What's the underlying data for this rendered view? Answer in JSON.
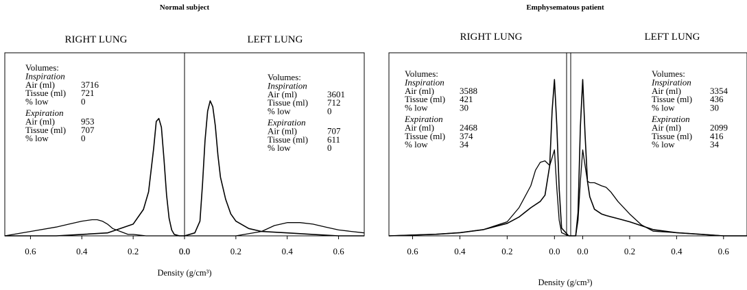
{
  "chart_data": [
    {
      "type": "line",
      "title": "Normal subject",
      "xlabel": "Density (g/cm³)",
      "ylabel": "",
      "x_note": "Each half is a mirrored density axis: values increase away from the central divider.",
      "panels": [
        {
          "label": "RIGHT LUNG",
          "xlim": [
            0.7,
            0.0
          ],
          "xticks": [
            "0.6",
            "0.4",
            "0.2",
            "0.0"
          ],
          "volumes": {
            "heading": "Volumes:",
            "inspiration": {
              "label": "Inspiration",
              "rows": [
                {
                  "name": "Air (ml)",
                  "value": "3716"
                },
                {
                  "name": "Tissue (ml)",
                  "value": "721"
                },
                {
                  "name": "% low",
                  "value": "0"
                }
              ]
            },
            "expiration": {
              "label": "Expiration",
              "rows": [
                {
                  "name": "Air (ml)",
                  "value": "953"
                },
                {
                  "name": "Tissue (ml)",
                  "value": "707"
                },
                {
                  "name": "% low",
                  "value": "0"
                }
              ]
            }
          },
          "series": [
            {
              "phase": "inspiration",
              "x": [
                0.7,
                0.5,
                0.4,
                0.3,
                0.2,
                0.16,
                0.14,
                0.12,
                0.11,
                0.1,
                0.09,
                0.08,
                0.07,
                0.06,
                0.05,
                0.04,
                0.02,
                0.0
              ],
              "y": [
                0.0,
                0.0,
                0.01,
                0.02,
                0.08,
                0.18,
                0.3,
                0.6,
                0.78,
                0.8,
                0.74,
                0.52,
                0.28,
                0.12,
                0.04,
                0.01,
                0.0,
                0.0
              ]
            },
            {
              "phase": "expiration",
              "x": [
                0.7,
                0.6,
                0.5,
                0.45,
                0.4,
                0.36,
                0.34,
                0.32,
                0.3,
                0.28,
                0.25,
                0.22,
                0.2,
                0.15,
                0.1,
                0.05,
                0.0
              ],
              "y": [
                0.0,
                0.03,
                0.06,
                0.08,
                0.1,
                0.11,
                0.11,
                0.1,
                0.08,
                0.05,
                0.03,
                0.01,
                0.01,
                0.0,
                0.0,
                0.0,
                0.0
              ]
            }
          ]
        },
        {
          "label": "LEFT LUNG",
          "xlim": [
            0.0,
            0.7
          ],
          "xticks": [
            "0.0",
            "0.2",
            "0.4",
            "0.6"
          ],
          "volumes": {
            "heading": "Volumes:",
            "inspiration": {
              "label": "Inspiration",
              "rows": [
                {
                  "name": "Air (ml)",
                  "value": "3601"
                },
                {
                  "name": "Tissue (ml)",
                  "value": "712"
                },
                {
                  "name": "% low",
                  "value": "0"
                }
              ]
            },
            "expiration": {
              "label": "Expiration",
              "rows": [
                {
                  "name": "Air (ml)",
                  "value": "707"
                },
                {
                  "name": "Tissue (ml)",
                  "value": "611"
                },
                {
                  "name": "% low",
                  "value": "0"
                }
              ]
            }
          },
          "series": [
            {
              "phase": "inspiration",
              "x": [
                0.0,
                0.04,
                0.06,
                0.07,
                0.08,
                0.09,
                0.1,
                0.11,
                0.12,
                0.13,
                0.14,
                0.16,
                0.18,
                0.2,
                0.25,
                0.3,
                0.4,
                0.5,
                0.6,
                0.7
              ],
              "y": [
                0.0,
                0.02,
                0.1,
                0.35,
                0.65,
                0.85,
                0.92,
                0.88,
                0.75,
                0.55,
                0.4,
                0.25,
                0.15,
                0.1,
                0.05,
                0.03,
                0.02,
                0.01,
                0.0,
                0.0
              ]
            },
            {
              "phase": "expiration",
              "x": [
                0.0,
                0.1,
                0.2,
                0.3,
                0.35,
                0.4,
                0.45,
                0.5,
                0.55,
                0.6,
                0.65,
                0.7
              ],
              "y": [
                0.0,
                0.0,
                0.0,
                0.03,
                0.07,
                0.09,
                0.09,
                0.08,
                0.06,
                0.04,
                0.03,
                0.02
              ]
            }
          ]
        }
      ]
    },
    {
      "type": "line",
      "title": "Emphysematous patient",
      "xlabel": "Density (g/cm³)",
      "ylabel": "",
      "panels": [
        {
          "label": "RIGHT LUNG",
          "xlim": [
            0.7,
            -0.06
          ],
          "xticks": [
            "0.6",
            "0.4",
            "0.2",
            "0.0"
          ],
          "volumes": {
            "heading": "Volumes:",
            "inspiration": {
              "label": "Inspiration",
              "rows": [
                {
                  "name": "Air (ml)",
                  "value": "3588"
                },
                {
                  "name": "Tissue (ml)",
                  "value": "421"
                },
                {
                  "name": "% low",
                  "value": "30"
                }
              ]
            },
            "expiration": {
              "label": "Expiration",
              "rows": [
                {
                  "name": "Air (ml)",
                  "value": "2468"
                },
                {
                  "name": "Tissue (ml)",
                  "value": "374"
                },
                {
                  "name": "% low",
                  "value": "34"
                }
              ]
            }
          },
          "series": [
            {
              "phase": "inspiration",
              "x": [
                0.7,
                0.5,
                0.4,
                0.3,
                0.2,
                0.15,
                0.1,
                0.06,
                0.04,
                0.02,
                0.01,
                0.0,
                -0.01,
                -0.02,
                -0.03,
                -0.06
              ],
              "y": [
                0.0,
                0.01,
                0.02,
                0.04,
                0.08,
                0.12,
                0.18,
                0.22,
                0.26,
                0.45,
                0.8,
                1.0,
                0.7,
                0.3,
                0.05,
                0.0
              ]
            },
            {
              "phase": "expiration",
              "x": [
                0.7,
                0.5,
                0.4,
                0.3,
                0.2,
                0.15,
                0.1,
                0.08,
                0.06,
                0.04,
                0.02,
                0.01,
                0.0,
                -0.01,
                -0.02,
                -0.03,
                -0.06
              ],
              "y": [
                0.0,
                0.01,
                0.02,
                0.04,
                0.09,
                0.18,
                0.32,
                0.42,
                0.47,
                0.48,
                0.45,
                0.5,
                0.55,
                0.3,
                0.1,
                0.02,
                0.0
              ]
            }
          ]
        },
        {
          "label": "LEFT LUNG",
          "xlim": [
            -0.06,
            0.7
          ],
          "xticks": [
            "0.0",
            "0.2",
            "0.4",
            "0.6"
          ],
          "volumes": {
            "heading": "Volumes:",
            "inspiration": {
              "label": "Inspiration",
              "rows": [
                {
                  "name": "Air (ml)",
                  "value": "3354"
                },
                {
                  "name": "Tissue (ml)",
                  "value": "436"
                },
                {
                  "name": "% low",
                  "value": "30"
                }
              ]
            },
            "expiration": {
              "label": "Expiration",
              "rows": [
                {
                  "name": "Air (ml)",
                  "value": "2099"
                },
                {
                  "name": "Tissue (ml)",
                  "value": "416"
                },
                {
                  "name": "% low",
                  "value": "34"
                }
              ]
            }
          },
          "series": [
            {
              "phase": "inspiration",
              "x": [
                -0.06,
                -0.03,
                -0.02,
                -0.01,
                0.0,
                0.01,
                0.02,
                0.03,
                0.05,
                0.08,
                0.1,
                0.15,
                0.2,
                0.3,
                0.4,
                0.5,
                0.6,
                0.7
              ],
              "y": [
                0.0,
                0.0,
                0.15,
                0.7,
                1.0,
                0.65,
                0.35,
                0.25,
                0.17,
                0.14,
                0.13,
                0.11,
                0.09,
                0.04,
                0.02,
                0.01,
                0.0,
                0.0
              ]
            },
            {
              "phase": "expiration",
              "x": [
                -0.06,
                -0.03,
                -0.02,
                -0.01,
                0.0,
                0.01,
                0.02,
                0.03,
                0.05,
                0.08,
                0.1,
                0.12,
                0.15,
                0.2,
                0.25,
                0.3,
                0.4,
                0.5,
                0.6,
                0.7
              ],
              "y": [
                0.0,
                0.0,
                0.1,
                0.35,
                0.55,
                0.45,
                0.35,
                0.34,
                0.34,
                0.32,
                0.31,
                0.28,
                0.22,
                0.14,
                0.07,
                0.03,
                0.02,
                0.01,
                0.0,
                0.0
              ]
            }
          ]
        }
      ]
    }
  ]
}
